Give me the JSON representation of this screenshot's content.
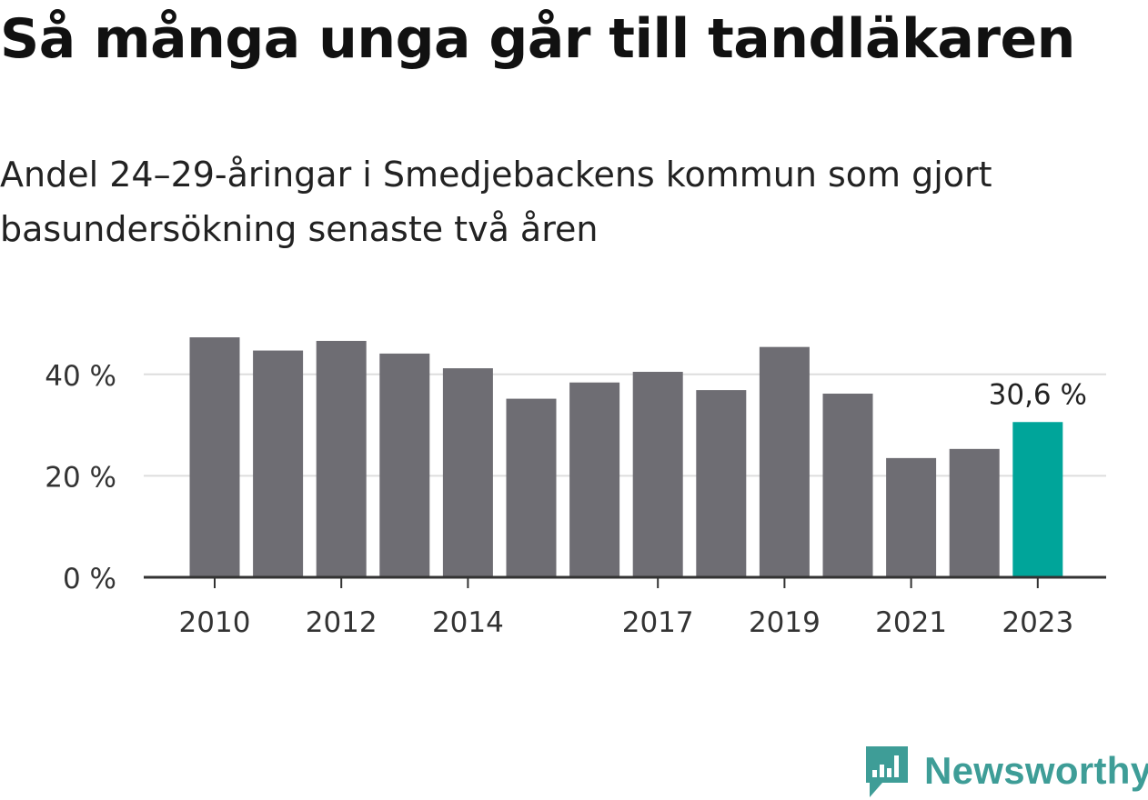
{
  "header": {
    "title": "Så många unga går till tandläkaren",
    "subtitle": "Andel 24–29-åringar i Smedjebackens kommun som gjort basundersökning senaste två åren"
  },
  "brand": {
    "name": "Newsworthy",
    "color": "#3e9d97"
  },
  "chart_data": {
    "type": "bar",
    "categories": [
      "2010",
      "2011",
      "2012",
      "2013",
      "2014",
      "2015",
      "2016",
      "2017",
      "2018",
      "2019",
      "2020",
      "2021",
      "2022",
      "2023"
    ],
    "values": [
      47.3,
      44.7,
      46.6,
      44.1,
      41.2,
      35.2,
      38.4,
      40.5,
      36.9,
      45.4,
      36.2,
      23.5,
      25.3,
      30.6
    ],
    "tick_labels": {
      "2010": "2010",
      "2012": "2012",
      "2014": "2014",
      "2017": "2017",
      "2019": "2019",
      "2021": "2021",
      "2023": "2023"
    },
    "y_ticks": [
      {
        "value": 0,
        "label": "0 %"
      },
      {
        "value": 20,
        "label": "20 %"
      },
      {
        "value": 40,
        "label": "40 %"
      }
    ],
    "ylim": [
      0,
      50
    ],
    "grid": true,
    "bar_color": "#6e6d73",
    "highlight_color": "#00a59a",
    "highlight_category": "2023",
    "highlight_label": "30,6 %"
  }
}
